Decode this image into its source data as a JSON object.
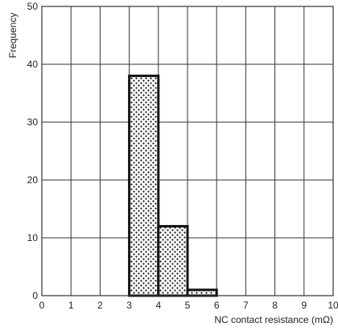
{
  "chart_data": {
    "type": "bar",
    "subtype": "histogram",
    "bins": [
      {
        "start": 3,
        "end": 4,
        "value": 38
      },
      {
        "start": 4,
        "end": 5,
        "value": 12
      },
      {
        "start": 5,
        "end": 6,
        "value": 1
      }
    ],
    "xlabel": "NC contact resistance (mΩ)",
    "ylabel": "Frequency",
    "xlim": [
      0,
      10
    ],
    "ylim": [
      0,
      50
    ],
    "xticks": [
      0,
      1,
      2,
      3,
      4,
      5,
      6,
      7,
      8,
      9,
      10
    ],
    "yticks": [
      0,
      10,
      20,
      30,
      40,
      50
    ],
    "xtick_labels": [
      "0",
      "1",
      "2",
      "3",
      "4",
      "5",
      "6",
      "7",
      "8",
      "9",
      "10"
    ],
    "ytick_labels": [
      "0",
      "10",
      "20",
      "30",
      "40",
      "50"
    ],
    "grid": true,
    "bar_fill": "dotted pattern",
    "colors": {
      "grid": "#333333",
      "bar_outline": "#111111",
      "bar_dots": "#111111",
      "text": "#222222",
      "background": "#ffffff"
    }
  }
}
